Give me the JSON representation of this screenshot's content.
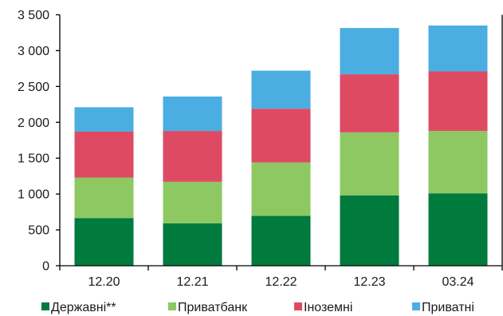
{
  "chart_data": {
    "type": "bar",
    "stacked": true,
    "categories": [
      "12.20",
      "12.21",
      "12.22",
      "12.23",
      "03.24"
    ],
    "series": [
      {
        "name": "Державні**",
        "color": "#007a3d",
        "values": [
          665,
          590,
          695,
          980,
          1010
        ]
      },
      {
        "name": "Приватбанк",
        "color": "#8dc862",
        "values": [
          565,
          580,
          745,
          880,
          870
        ]
      },
      {
        "name": "Іноземні",
        "color": "#df4a63",
        "values": [
          640,
          710,
          750,
          810,
          830
        ]
      },
      {
        "name": "Приватні",
        "color": "#4aaee2",
        "values": [
          340,
          480,
          530,
          645,
          640
        ]
      }
    ],
    "y_ticks": [
      "0",
      "500",
      "1 000",
      "1 500",
      "2 000",
      "2 500",
      "3 000",
      "3 500"
    ],
    "ylim": [
      0,
      3500
    ],
    "ytick_step": 500,
    "grid": false,
    "legend_position": "bottom",
    "title": "",
    "xlabel": "",
    "ylabel": ""
  }
}
